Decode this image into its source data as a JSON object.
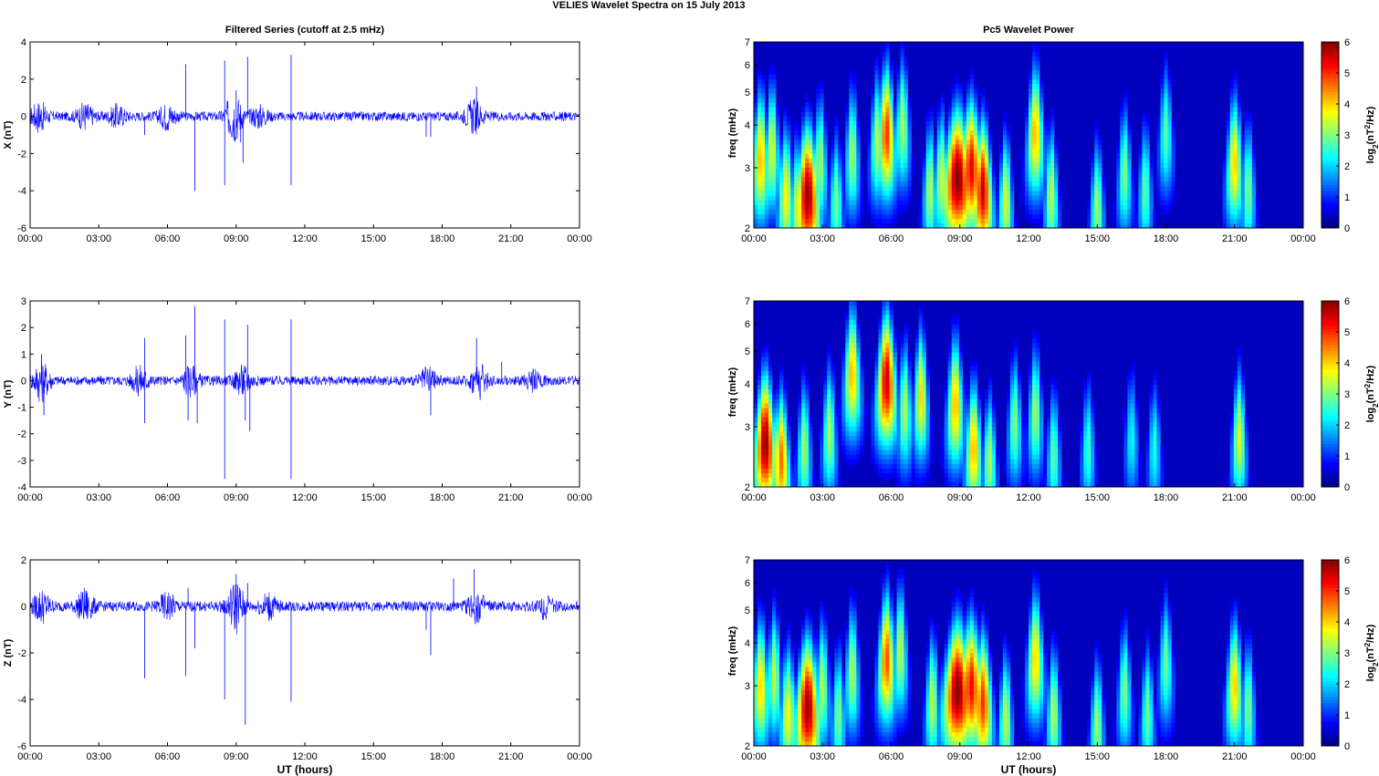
{
  "figure": {
    "title": "VELIES Wavelet Spectra on 15 July      2013",
    "left_title": "Filtered Series (cutoff at 2.5 mHz)",
    "right_title": "Pc5 Wavelet Power",
    "xlabel": "UT (hours)"
  },
  "chart_data": [
    {
      "type": "line",
      "component": "X",
      "ylabel": "X (nT)",
      "x_ticks": [
        "00:00",
        "03:00",
        "06:00",
        "09:00",
        "12:00",
        "15:00",
        "18:00",
        "21:00",
        "00:00"
      ],
      "xlim": [
        0,
        24
      ],
      "ylim": [
        -6,
        4
      ],
      "y_ticks": [
        -6,
        -4,
        -2,
        0,
        2,
        4
      ],
      "noise_amplitude": 0.25,
      "bursts": [
        [
          0.4,
          0.7
        ],
        [
          2.4,
          0.6
        ],
        [
          3.8,
          0.5
        ],
        [
          6.0,
          0.6
        ],
        [
          8.9,
          1.2
        ],
        [
          10.0,
          0.5
        ],
        [
          19.4,
          0.8
        ]
      ],
      "spikes": [
        [
          5.0,
          -1.0
        ],
        [
          6.8,
          2.8
        ],
        [
          7.2,
          -4.0
        ],
        [
          8.5,
          3.0
        ],
        [
          8.5,
          -3.7
        ],
        [
          9.0,
          1.4
        ],
        [
          9.2,
          -1.4
        ],
        [
          9.5,
          3.2
        ],
        [
          9.3,
          -2.5
        ],
        [
          11.4,
          3.3
        ],
        [
          11.4,
          -3.7
        ],
        [
          17.3,
          -1.1
        ],
        [
          17.5,
          -1.1
        ],
        [
          19.5,
          1.6
        ]
      ],
      "color": "#0000ff"
    },
    {
      "type": "line",
      "component": "Y",
      "ylabel": "Y (nT)",
      "x_ticks": [
        "00:00",
        "03:00",
        "06:00",
        "09:00",
        "12:00",
        "15:00",
        "18:00",
        "21:00",
        "00:00"
      ],
      "xlim": [
        0,
        24
      ],
      "ylim": [
        -4,
        3
      ],
      "y_ticks": [
        -4,
        -3,
        -2,
        -1,
        0,
        1,
        2,
        3
      ],
      "noise_amplitude": 0.18,
      "bursts": [
        [
          0.5,
          0.7
        ],
        [
          4.8,
          0.5
        ],
        [
          7.0,
          0.5
        ],
        [
          9.3,
          0.5
        ],
        [
          17.4,
          0.4
        ],
        [
          19.6,
          0.6
        ],
        [
          22.0,
          0.3
        ]
      ],
      "spikes": [
        [
          0.5,
          1.0
        ],
        [
          0.6,
          -1.3
        ],
        [
          5.0,
          1.6
        ],
        [
          5.0,
          -1.6
        ],
        [
          6.8,
          1.7
        ],
        [
          6.9,
          -1.5
        ],
        [
          7.2,
          2.8
        ],
        [
          7.3,
          -1.6
        ],
        [
          8.5,
          2.3
        ],
        [
          8.5,
          -3.7
        ],
        [
          9.4,
          -1.5
        ],
        [
          9.5,
          2.1
        ],
        [
          9.6,
          -1.9
        ],
        [
          11.4,
          2.3
        ],
        [
          11.4,
          -3.7
        ],
        [
          17.5,
          -1.3
        ],
        [
          19.5,
          1.6
        ],
        [
          20.6,
          0.7
        ]
      ],
      "color": "#0000ff"
    },
    {
      "type": "line",
      "component": "Z",
      "ylabel": "Z (nT)",
      "x_ticks": [
        "00:00",
        "03:00",
        "06:00",
        "09:00",
        "12:00",
        "15:00",
        "18:00",
        "21:00",
        "00:00"
      ],
      "xlim": [
        0,
        24
      ],
      "ylim": [
        -6,
        2
      ],
      "y_ticks": [
        -6,
        -4,
        -2,
        0,
        2
      ],
      "noise_amplitude": 0.22,
      "bursts": [
        [
          0.5,
          0.6
        ],
        [
          2.4,
          0.6
        ],
        [
          6.0,
          0.5
        ],
        [
          9.0,
          1.0
        ],
        [
          10.4,
          0.5
        ],
        [
          19.5,
          0.6
        ],
        [
          22.5,
          0.4
        ]
      ],
      "spikes": [
        [
          5.0,
          -3.1
        ],
        [
          6.8,
          -3.0
        ],
        [
          6.9,
          0.8
        ],
        [
          7.2,
          -1.8
        ],
        [
          8.5,
          -4.0
        ],
        [
          9.0,
          1.4
        ],
        [
          9.4,
          -5.1
        ],
        [
          9.5,
          1.0
        ],
        [
          11.4,
          -4.1
        ],
        [
          17.5,
          -2.1
        ],
        [
          17.3,
          -1.0
        ],
        [
          18.5,
          1.2
        ],
        [
          19.4,
          1.6
        ]
      ],
      "color": "#0000ff"
    },
    {
      "type": "heatmap",
      "component": "X",
      "ylabel": "freq (mHz)",
      "colorbar_label": "log2(nT2/Hz)",
      "x_ticks": [
        "00:00",
        "03:00",
        "06:00",
        "09:00",
        "12:00",
        "15:00",
        "18:00",
        "21:00",
        "00:00"
      ],
      "y_ticks": [
        2,
        3,
        4,
        5,
        6,
        7
      ],
      "ylim": [
        2,
        7
      ],
      "yscale": "log",
      "clim": [
        0,
        6
      ],
      "colorbar_ticks": [
        0,
        1,
        2,
        3,
        4,
        5,
        6
      ],
      "colormap": "jet",
      "events": [
        {
          "t": 0.3,
          "f": 3.2,
          "p": 4.2,
          "w": 0.35
        },
        {
          "t": 0.8,
          "f": 3.4,
          "p": 3.6,
          "w": 0.3
        },
        {
          "t": 1.4,
          "f": 2.5,
          "p": 3.8,
          "w": 0.35
        },
        {
          "t": 1.9,
          "f": 2.3,
          "p": 3.5,
          "w": 0.3
        },
        {
          "t": 2.35,
          "f": 2.5,
          "p": 5.9,
          "w": 0.5
        },
        {
          "t": 2.9,
          "f": 3.1,
          "p": 3.2,
          "w": 0.3
        },
        {
          "t": 3.6,
          "f": 2.4,
          "p": 3.0,
          "w": 0.3
        },
        {
          "t": 4.3,
          "f": 3.3,
          "p": 3.2,
          "w": 0.3
        },
        {
          "t": 5.4,
          "f": 3.6,
          "p": 3.4,
          "w": 0.3
        },
        {
          "t": 5.8,
          "f": 3.8,
          "p": 5.0,
          "w": 0.35
        },
        {
          "t": 6.5,
          "f": 4.0,
          "p": 3.3,
          "w": 0.3
        },
        {
          "t": 7.7,
          "f": 2.6,
          "p": 3.3,
          "w": 0.3
        },
        {
          "t": 8.2,
          "f": 2.8,
          "p": 3.5,
          "w": 0.3
        },
        {
          "t": 8.9,
          "f": 2.8,
          "p": 6.0,
          "w": 0.6
        },
        {
          "t": 9.5,
          "f": 3.0,
          "p": 5.4,
          "w": 0.45
        },
        {
          "t": 10.0,
          "f": 2.6,
          "p": 5.6,
          "w": 0.4
        },
        {
          "t": 11.0,
          "f": 2.4,
          "p": 3.6,
          "w": 0.3
        },
        {
          "t": 12.3,
          "f": 3.8,
          "p": 4.2,
          "w": 0.35
        },
        {
          "t": 13.0,
          "f": 2.5,
          "p": 3.4,
          "w": 0.3
        },
        {
          "t": 15.0,
          "f": 2.3,
          "p": 3.2,
          "w": 0.3
        },
        {
          "t": 16.2,
          "f": 2.9,
          "p": 3.0,
          "w": 0.3
        },
        {
          "t": 17.1,
          "f": 2.6,
          "p": 2.8,
          "w": 0.3
        },
        {
          "t": 18.0,
          "f": 3.8,
          "p": 2.8,
          "w": 0.3
        },
        {
          "t": 21.0,
          "f": 3.1,
          "p": 4.0,
          "w": 0.35
        },
        {
          "t": 21.6,
          "f": 2.6,
          "p": 3.0,
          "w": 0.3
        }
      ]
    },
    {
      "type": "heatmap",
      "component": "Y",
      "ylabel": "freq (mHz)",
      "colorbar_label": "log2(nT2/Hz)",
      "x_ticks": [
        "00:00",
        "03:00",
        "06:00",
        "09:00",
        "12:00",
        "15:00",
        "18:00",
        "21:00",
        "00:00"
      ],
      "y_ticks": [
        2,
        3,
        4,
        5,
        6,
        7
      ],
      "ylim": [
        2,
        7
      ],
      "yscale": "log",
      "clim": [
        0,
        6
      ],
      "colorbar_ticks": [
        0,
        1,
        2,
        3,
        4,
        5,
        6
      ],
      "colormap": "jet",
      "events": [
        {
          "t": 0.5,
          "f": 2.7,
          "p": 5.9,
          "w": 0.45
        },
        {
          "t": 1.2,
          "f": 2.4,
          "p": 4.6,
          "w": 0.35
        },
        {
          "t": 2.2,
          "f": 2.6,
          "p": 3.2,
          "w": 0.3
        },
        {
          "t": 3.3,
          "f": 2.9,
          "p": 3.3,
          "w": 0.3
        },
        {
          "t": 4.3,
          "f": 4.3,
          "p": 4.2,
          "w": 0.35
        },
        {
          "t": 5.8,
          "f": 4.1,
          "p": 5.6,
          "w": 0.4
        },
        {
          "t": 6.6,
          "f": 3.4,
          "p": 3.3,
          "w": 0.3
        },
        {
          "t": 7.3,
          "f": 3.7,
          "p": 4.0,
          "w": 0.3
        },
        {
          "t": 8.8,
          "f": 3.5,
          "p": 4.2,
          "w": 0.35
        },
        {
          "t": 9.6,
          "f": 2.6,
          "p": 4.2,
          "w": 0.35
        },
        {
          "t": 10.3,
          "f": 2.4,
          "p": 3.3,
          "w": 0.3
        },
        {
          "t": 11.4,
          "f": 3.1,
          "p": 3.0,
          "w": 0.3
        },
        {
          "t": 12.3,
          "f": 3.3,
          "p": 3.2,
          "w": 0.3
        },
        {
          "t": 13.1,
          "f": 2.5,
          "p": 2.8,
          "w": 0.3
        },
        {
          "t": 14.6,
          "f": 2.6,
          "p": 2.6,
          "w": 0.3
        },
        {
          "t": 16.5,
          "f": 2.8,
          "p": 2.3,
          "w": 0.3
        },
        {
          "t": 17.5,
          "f": 2.6,
          "p": 2.4,
          "w": 0.3
        },
        {
          "t": 21.2,
          "f": 2.8,
          "p": 3.6,
          "w": 0.3
        }
      ]
    },
    {
      "type": "heatmap",
      "component": "Z",
      "ylabel": "freq (mHz)",
      "colorbar_label": "log2(nT2/Hz)",
      "x_ticks": [
        "00:00",
        "03:00",
        "06:00",
        "09:00",
        "12:00",
        "15:00",
        "18:00",
        "21:00",
        "00:00"
      ],
      "y_ticks": [
        2,
        3,
        4,
        5,
        6,
        7
      ],
      "ylim": [
        2,
        7
      ],
      "yscale": "log",
      "clim": [
        0,
        6
      ],
      "colorbar_ticks": [
        0,
        1,
        2,
        3,
        4,
        5,
        6
      ],
      "colormap": "jet",
      "events": [
        {
          "t": 0.3,
          "f": 3.0,
          "p": 4.0,
          "w": 0.35
        },
        {
          "t": 0.9,
          "f": 3.2,
          "p": 3.4,
          "w": 0.3
        },
        {
          "t": 1.5,
          "f": 2.5,
          "p": 3.8,
          "w": 0.35
        },
        {
          "t": 2.35,
          "f": 2.6,
          "p": 5.9,
          "w": 0.5
        },
        {
          "t": 3.0,
          "f": 3.0,
          "p": 3.3,
          "w": 0.3
        },
        {
          "t": 3.7,
          "f": 2.5,
          "p": 3.0,
          "w": 0.3
        },
        {
          "t": 4.3,
          "f": 3.3,
          "p": 3.3,
          "w": 0.3
        },
        {
          "t": 5.8,
          "f": 3.6,
          "p": 4.8,
          "w": 0.35
        },
        {
          "t": 6.4,
          "f": 3.8,
          "p": 3.4,
          "w": 0.3
        },
        {
          "t": 7.8,
          "f": 2.7,
          "p": 3.4,
          "w": 0.3
        },
        {
          "t": 8.9,
          "f": 2.9,
          "p": 6.0,
          "w": 0.6
        },
        {
          "t": 9.5,
          "f": 3.0,
          "p": 5.3,
          "w": 0.45
        },
        {
          "t": 10.0,
          "f": 2.7,
          "p": 5.0,
          "w": 0.4
        },
        {
          "t": 11.0,
          "f": 2.4,
          "p": 3.4,
          "w": 0.3
        },
        {
          "t": 12.3,
          "f": 3.6,
          "p": 4.0,
          "w": 0.35
        },
        {
          "t": 13.1,
          "f": 2.5,
          "p": 3.3,
          "w": 0.3
        },
        {
          "t": 15.0,
          "f": 2.3,
          "p": 3.2,
          "w": 0.3
        },
        {
          "t": 16.2,
          "f": 2.9,
          "p": 3.0,
          "w": 0.3
        },
        {
          "t": 17.2,
          "f": 2.5,
          "p": 2.9,
          "w": 0.3
        },
        {
          "t": 18.0,
          "f": 3.5,
          "p": 2.9,
          "w": 0.3
        },
        {
          "t": 21.0,
          "f": 3.0,
          "p": 4.0,
          "w": 0.35
        },
        {
          "t": 21.6,
          "f": 2.6,
          "p": 3.0,
          "w": 0.3
        }
      ]
    }
  ]
}
